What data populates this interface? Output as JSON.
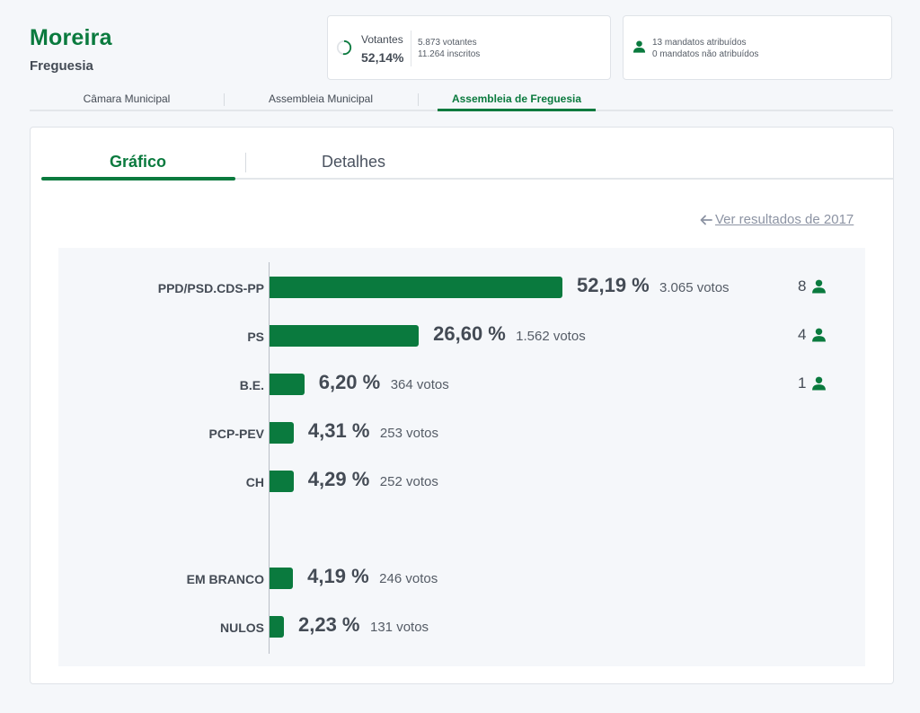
{
  "header": {
    "title": "Moreira",
    "subtitle": "Freguesia"
  },
  "summary": {
    "votes_label": "Votantes",
    "turnout_pct": "52,14%",
    "turnout_fraction": 0.5214,
    "voters": "5.873 votantes",
    "registered": "11.264 inscritos",
    "seats_assigned": "13 mandatos atribuídos",
    "seats_unassigned": "0 mandatos não atribuídos"
  },
  "top_tabs": [
    {
      "label": "Câmara Municipal",
      "active": false
    },
    {
      "label": "Assembleia Municipal",
      "active": false
    },
    {
      "label": "Assembleia de Freguesia",
      "active": true
    }
  ],
  "panel_tabs": [
    {
      "label": "Gráfico",
      "active": true
    },
    {
      "label": "Detalhes",
      "active": false
    }
  ],
  "prev_results_link": "Ver resultados de 2017",
  "icons": {
    "turnout": "progress-ring-icon",
    "seats": "person-icon",
    "back": "arrow-left-icon"
  },
  "colors": {
    "accent": "#0a7a3e",
    "text": "#444b55",
    "link": "#8c93a3"
  },
  "chart_data": {
    "type": "bar",
    "orientation": "horizontal",
    "xlim": [
      0,
      100
    ],
    "rows": [
      {
        "label": "PPD/PSD.CDS-PP",
        "value": 52.19,
        "pct_text": "52,19 %",
        "votes_text": "3.065 votos",
        "seats": "8"
      },
      {
        "label": "PS",
        "value": 26.6,
        "pct_text": "26,60 %",
        "votes_text": "1.562 votos",
        "seats": "4"
      },
      {
        "label": "B.E.",
        "value": 6.2,
        "pct_text": "6,20 %",
        "votes_text": "364 votos",
        "seats": "1"
      },
      {
        "label": "PCP-PEV",
        "value": 4.31,
        "pct_text": "4,31 %",
        "votes_text": "253 votos",
        "seats": ""
      },
      {
        "label": "CH",
        "value": 4.29,
        "pct_text": "4,29 %",
        "votes_text": "252 votos",
        "seats": ""
      },
      {
        "label": "EM BRANCO",
        "value": 4.19,
        "pct_text": "4,19 %",
        "votes_text": "246 votos",
        "seats": ""
      },
      {
        "label": "NULOS",
        "value": 2.23,
        "pct_text": "2,23 %",
        "votes_text": "131 votos",
        "seats": ""
      }
    ]
  }
}
